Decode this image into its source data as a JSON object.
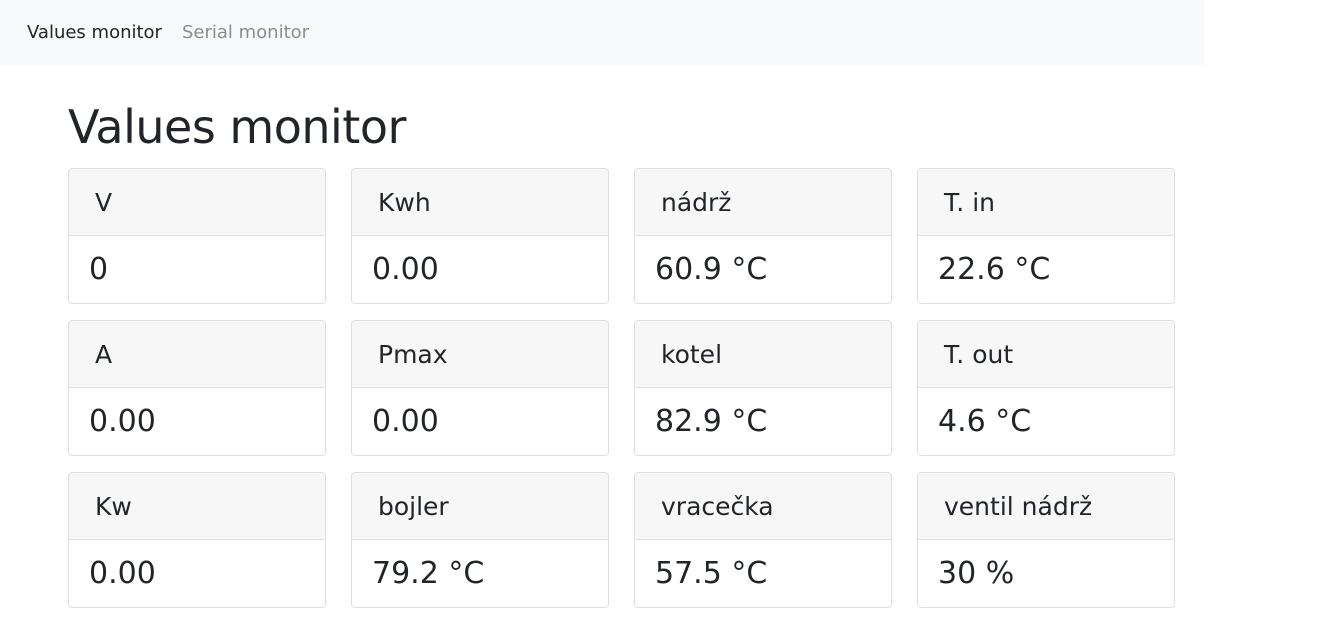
{
  "nav": {
    "items": [
      {
        "label": "Values monitor",
        "active": true
      },
      {
        "label": "Serial monitor",
        "active": false
      }
    ]
  },
  "page": {
    "title": "Values monitor"
  },
  "cards": [
    {
      "label": "V",
      "value": "0"
    },
    {
      "label": "Kwh",
      "value": "0.00"
    },
    {
      "label": "nádrž",
      "value": "60.9 °C"
    },
    {
      "label": "T. in",
      "value": "22.6 °C"
    },
    {
      "label": "A",
      "value": "0.00"
    },
    {
      "label": "Pmax",
      "value": "0.00"
    },
    {
      "label": "kotel",
      "value": "82.9 °C"
    },
    {
      "label": "T. out",
      "value": "4.6 °C"
    },
    {
      "label": "Kw",
      "value": "0.00"
    },
    {
      "label": "bojler",
      "value": "79.2 °C"
    },
    {
      "label": "vracečka",
      "value": "57.5 °C"
    },
    {
      "label": "ventil nádrž",
      "value": "30 %"
    }
  ]
}
